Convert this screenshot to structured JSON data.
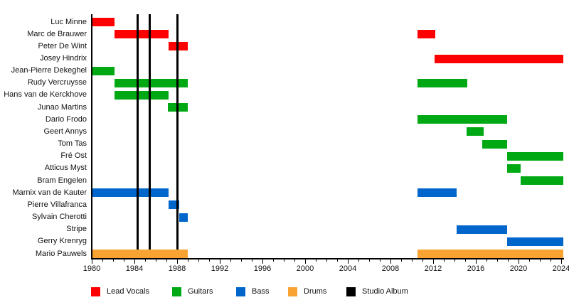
{
  "chart_data": {
    "type": "timeline",
    "description": "Band members timeline (gantt-style) with studio album markers",
    "x_axis": {
      "min": 1980,
      "max": 2024.2,
      "major_tick_years": [
        1980,
        1984,
        1988,
        1992,
        1996,
        2000,
        2004,
        2008,
        2012,
        2016,
        2020,
        2024
      ],
      "minor_tick_step": 1,
      "tick_labels": [
        "1980",
        "1984",
        "1988",
        "1992",
        "1996",
        "2000",
        "2004",
        "2008",
        "2012",
        "2016",
        "2020",
        "2024"
      ]
    },
    "colors": {
      "Lead Vocals": "#fe0000",
      "Guitars": "#00a913",
      "Bass": "#0066cc",
      "Drums": "#f9a333",
      "Studio Album": "#000000"
    },
    "legend": [
      {
        "label": "Lead Vocals",
        "color": "#fe0000"
      },
      {
        "label": "Guitars",
        "color": "#00a913"
      },
      {
        "label": "Bass",
        "color": "#0066cc"
      },
      {
        "label": "Drums",
        "color": "#f9a333"
      },
      {
        "label": "Studio Album",
        "color": "#000000"
      }
    ],
    "studio_albums": [
      1984.3,
      1985.4,
      1988.0
    ],
    "members": [
      {
        "name": "Luc Minne",
        "role": "Lead Vocals",
        "segments": [
          [
            1980.0,
            1982.1
          ]
        ]
      },
      {
        "name": "Marc de Brauwer",
        "role": "Lead Vocals",
        "segments": [
          [
            1982.1,
            1987.2
          ],
          [
            2010.5,
            2012.2
          ]
        ]
      },
      {
        "name": "Peter De Wint",
        "role": "Lead Vocals",
        "segments": [
          [
            1987.2,
            1989.0
          ]
        ]
      },
      {
        "name": "Josey Hindrix",
        "role": "Lead Vocals",
        "segments": [
          [
            2012.1,
            2024.2
          ]
        ]
      },
      {
        "name": "Jean-Pierre Dekeghel",
        "role": "Guitars",
        "segments": [
          [
            1980.0,
            1982.1
          ]
        ]
      },
      {
        "name": "Rudy Vercruysse",
        "role": "Guitars",
        "segments": [
          [
            1982.1,
            1989.0
          ],
          [
            2010.5,
            2015.2
          ]
        ]
      },
      {
        "name": "Hans van de Kerckhove",
        "role": "Guitars",
        "segments": [
          [
            1982.1,
            1987.2
          ]
        ]
      },
      {
        "name": "Junao Martins",
        "role": "Guitars",
        "segments": [
          [
            1987.1,
            1989.0
          ]
        ]
      },
      {
        "name": "Dario Frodo",
        "role": "Guitars",
        "segments": [
          [
            2010.5,
            2018.9
          ]
        ]
      },
      {
        "name": "Geert Annys",
        "role": "Guitars",
        "segments": [
          [
            2015.1,
            2016.7
          ]
        ]
      },
      {
        "name": "Tom Tas",
        "role": "Guitars",
        "segments": [
          [
            2016.6,
            2018.9
          ]
        ]
      },
      {
        "name": "Fré Ost",
        "role": "Guitars",
        "segments": [
          [
            2018.9,
            2024.2
          ]
        ]
      },
      {
        "name": "Atticus Myst",
        "role": "Guitars",
        "segments": [
          [
            2018.9,
            2020.2
          ]
        ]
      },
      {
        "name": "Bram Engelen",
        "role": "Guitars",
        "segments": [
          [
            2020.2,
            2024.2
          ]
        ]
      },
      {
        "name": "Marnix van de Kauter",
        "role": "Bass",
        "segments": [
          [
            1980.0,
            1987.2
          ],
          [
            2010.5,
            2014.2
          ]
        ]
      },
      {
        "name": "Pierre Villafranca",
        "role": "Bass",
        "segments": [
          [
            1987.2,
            1988.2
          ]
        ]
      },
      {
        "name": "Sylvain Cherotti",
        "role": "Bass",
        "segments": [
          [
            1988.2,
            1989.0
          ]
        ]
      },
      {
        "name": "Stripe",
        "role": "Bass",
        "segments": [
          [
            2014.2,
            2018.9
          ]
        ]
      },
      {
        "name": "Gerry Krenryg",
        "role": "Bass",
        "segments": [
          [
            2018.9,
            2024.2
          ]
        ]
      },
      {
        "name": "Mario Pauwels",
        "role": "Drums",
        "segments": [
          [
            1980.0,
            1989.0
          ],
          [
            2010.5,
            2024.2
          ]
        ]
      }
    ]
  }
}
